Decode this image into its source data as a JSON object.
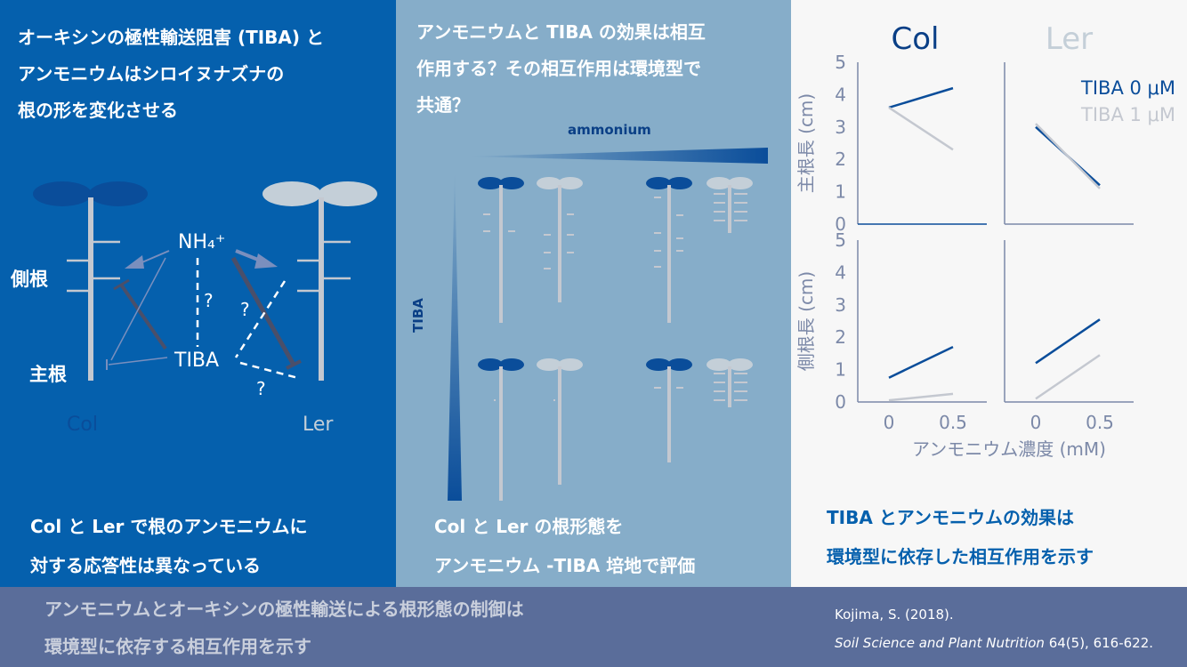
{
  "panel1": {
    "title_lines": [
      "オーキシンの極性輸送阻害 (TIBA) と",
      "アンモニウムはシロイヌナズナの",
      "根の形を変化させる"
    ],
    "nh4_label": "NH₄⁺",
    "tiba_label": "TIBA",
    "lateral_root_label": "側根",
    "main_root_label": "主根",
    "question_mark": "?",
    "col_label": "Col",
    "ler_label": "Ler",
    "caption_lines": [
      "Col と Ler で根のアンモニウムに",
      "対する応答性は異なっている"
    ]
  },
  "panel2": {
    "title_lines": [
      "アンモニウムと TIBA の効果は相互",
      "作用する？その相互作用は環境型で",
      "共通？"
    ],
    "ammonium_label": "ammonium",
    "tiba_label": "TIBA",
    "caption_lines": [
      "Col と Ler の根形態を",
      "アンモニウム -TIBA 培地で評価"
    ]
  },
  "panel3": {
    "caption_lines": [
      "TIBA とアンモニウムの効果は",
      "環境型に依存した相互作用を示す"
    ]
  },
  "bottom": {
    "summary_lines": [
      "アンモニウムとオーキシンの極性輸送による根形態の制御は",
      "環境型に依存する相互作用を示す"
    ],
    "citation_author": "Kojima, S. (2018).",
    "citation_journal": "Soil Science and Plant Nutrition",
    "citation_detail": " 64(5), 616-622."
  },
  "colors": {
    "col_dark_blue": "#0a4d9a",
    "ler_light_gray": "#c4c8d0",
    "panel1_bg": "#0560ad",
    "panel2_bg": "#86adc9",
    "panel3_bg": "#f7f7f7",
    "bottom_bg": "#5a6d9a"
  },
  "chart_data": {
    "type": "line",
    "columns": [
      "Col",
      "Ler"
    ],
    "legend": [
      "TIBA 0 μM",
      "TIBA 1 μM"
    ],
    "x": [
      0,
      0.5
    ],
    "xticks": [
      "0",
      "0.5"
    ],
    "xlabel": "アンモニウム濃度 (mM)",
    "ylim": [
      0,
      5
    ],
    "yticks": [
      "0",
      "1",
      "2",
      "3",
      "4",
      "5"
    ],
    "rows": [
      {
        "ylabel": "主根長 (cm)",
        "panels": [
          {
            "genotype": "Col",
            "series": [
              {
                "name": "TIBA 0 μM",
                "values": [
                  3.6,
                  4.2
                ]
              },
              {
                "name": "TIBA 1 μM",
                "values": [
                  3.6,
                  2.3
                ]
              }
            ]
          },
          {
            "genotype": "Ler",
            "series": [
              {
                "name": "TIBA 0 μM",
                "values": [
                  3.0,
                  1.2
                ]
              },
              {
                "name": "TIBA 1 μM",
                "values": [
                  3.1,
                  1.1
                ]
              }
            ]
          }
        ]
      },
      {
        "ylabel": "側根長 (cm)",
        "panels": [
          {
            "genotype": "Col",
            "series": [
              {
                "name": "TIBA 0 μM",
                "values": [
                  0.75,
                  1.7
                ]
              },
              {
                "name": "TIBA 1 μM",
                "values": [
                  0.05,
                  0.25
                ]
              }
            ]
          },
          {
            "genotype": "Ler",
            "series": [
              {
                "name": "TIBA 0 μM",
                "values": [
                  1.2,
                  2.55
                ]
              },
              {
                "name": "TIBA 1 μM",
                "values": [
                  0.1,
                  1.45
                ]
              }
            ]
          }
        ]
      }
    ]
  }
}
